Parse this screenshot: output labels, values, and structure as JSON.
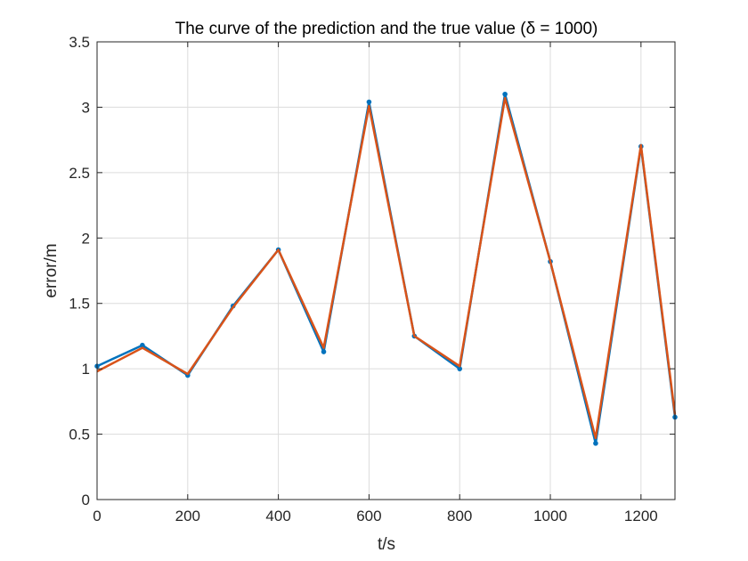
{
  "chart_data": {
    "type": "line",
    "title": "The curve of the prediction and the true value (δ = 1000)",
    "xlabel": "t/s",
    "ylabel": "error/m",
    "xlim": [
      0,
      1275
    ],
    "ylim": [
      0,
      3.5
    ],
    "xticks": [
      0,
      200,
      400,
      600,
      800,
      1000,
      1200
    ],
    "yticks": [
      0,
      0.5,
      1,
      1.5,
      2,
      2.5,
      3,
      3.5
    ],
    "xtick_labels": [
      "0",
      "200",
      "400",
      "600",
      "800",
      "1000",
      "1200"
    ],
    "ytick_labels": [
      "0",
      "0.5",
      "1",
      "1.5",
      "2",
      "2.5",
      "3",
      "3.5"
    ],
    "grid": true,
    "legend": "none",
    "series": [
      {
        "color": "#0072BD",
        "markers": true,
        "x": [
          0,
          100,
          200,
          300,
          400,
          500,
          600,
          700,
          800,
          900,
          1000,
          1100,
          1200,
          1275
        ],
        "y": [
          1.02,
          1.18,
          0.95,
          1.48,
          1.91,
          1.13,
          3.04,
          1.25,
          1.0,
          3.1,
          1.82,
          0.43,
          2.7,
          0.63
        ]
      },
      {
        "color": "#D95319",
        "markers": false,
        "x": [
          0,
          100,
          200,
          300,
          400,
          500,
          600,
          700,
          800,
          900,
          1000,
          1100,
          1200,
          1275
        ],
        "y": [
          0.98,
          1.16,
          0.96,
          1.47,
          1.91,
          1.16,
          3.01,
          1.25,
          1.02,
          3.07,
          1.82,
          0.47,
          2.71,
          0.65
        ]
      }
    ]
  }
}
